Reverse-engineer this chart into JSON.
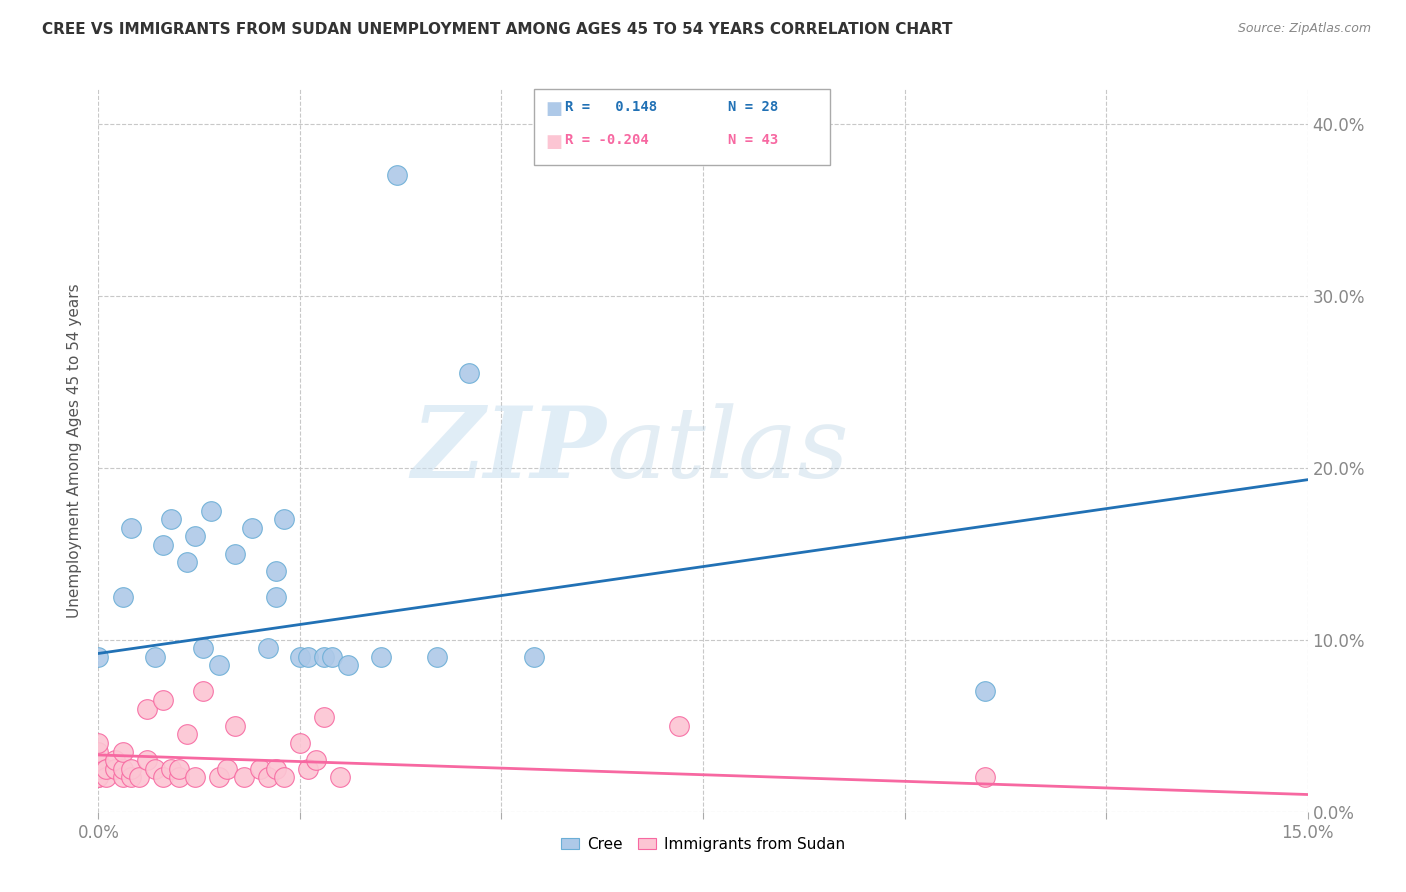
{
  "title": "CREE VS IMMIGRANTS FROM SUDAN UNEMPLOYMENT AMONG AGES 45 TO 54 YEARS CORRELATION CHART",
  "source": "Source: ZipAtlas.com",
  "ylabel": "Unemployment Among Ages 45 to 54 years",
  "xlim": [
    0.0,
    0.15
  ],
  "ylim": [
    0.0,
    0.42
  ],
  "xticks_minor": [
    0.0,
    0.025,
    0.05,
    0.075,
    0.1,
    0.125,
    0.15
  ],
  "xticks_labeled": [
    0.0,
    0.15
  ],
  "xtick_labels": [
    "0.0%",
    "15.0%"
  ],
  "yticks": [
    0.0,
    0.1,
    0.2,
    0.3,
    0.4
  ],
  "ytick_labels": [
    "0.0%",
    "10.0%",
    "20.0%",
    "30.0%",
    "40.0%"
  ],
  "cree_color": "#aec9e8",
  "cree_edge_color": "#6baed6",
  "sudan_color": "#fcc5d3",
  "sudan_edge_color": "#f768a1",
  "cree_line_color": "#2171b5",
  "sudan_line_color": "#f768a1",
  "legend_r_cree": "R =   0.148",
  "legend_n_cree": "N = 28",
  "legend_r_sudan": "R = -0.204",
  "legend_n_sudan": "N = 43",
  "watermark_zip": "ZIP",
  "watermark_atlas": "atlas",
  "cree_line_x0": 0.0,
  "cree_line_y0": 0.092,
  "cree_line_x1": 0.15,
  "cree_line_y1": 0.193,
  "sudan_line_x0": 0.0,
  "sudan_line_y0": 0.033,
  "sudan_line_x1": 0.15,
  "sudan_line_y1": 0.01,
  "cree_points_x": [
    0.0,
    0.003,
    0.004,
    0.007,
    0.008,
    0.009,
    0.011,
    0.012,
    0.013,
    0.014,
    0.015,
    0.017,
    0.019,
    0.021,
    0.022,
    0.022,
    0.023,
    0.025,
    0.026,
    0.028,
    0.029,
    0.031,
    0.035,
    0.037,
    0.042,
    0.046,
    0.054,
    0.11
  ],
  "cree_points_y": [
    0.09,
    0.125,
    0.165,
    0.09,
    0.155,
    0.17,
    0.145,
    0.16,
    0.095,
    0.175,
    0.085,
    0.15,
    0.165,
    0.095,
    0.125,
    0.14,
    0.17,
    0.09,
    0.09,
    0.09,
    0.09,
    0.085,
    0.09,
    0.37,
    0.09,
    0.255,
    0.09,
    0.07
  ],
  "sudan_points_x": [
    0.0,
    0.0,
    0.0,
    0.0,
    0.0,
    0.0,
    0.0,
    0.001,
    0.001,
    0.002,
    0.002,
    0.003,
    0.003,
    0.003,
    0.004,
    0.004,
    0.005,
    0.006,
    0.006,
    0.007,
    0.008,
    0.008,
    0.009,
    0.01,
    0.01,
    0.011,
    0.012,
    0.013,
    0.015,
    0.016,
    0.017,
    0.018,
    0.02,
    0.021,
    0.022,
    0.023,
    0.025,
    0.026,
    0.027,
    0.028,
    0.03,
    0.072,
    0.11
  ],
  "sudan_points_y": [
    0.02,
    0.02,
    0.025,
    0.025,
    0.03,
    0.035,
    0.04,
    0.02,
    0.025,
    0.025,
    0.03,
    0.02,
    0.025,
    0.035,
    0.02,
    0.025,
    0.02,
    0.03,
    0.06,
    0.025,
    0.02,
    0.065,
    0.025,
    0.02,
    0.025,
    0.045,
    0.02,
    0.07,
    0.02,
    0.025,
    0.05,
    0.02,
    0.025,
    0.02,
    0.025,
    0.02,
    0.04,
    0.025,
    0.03,
    0.055,
    0.02,
    0.05,
    0.02
  ],
  "background_color": "#ffffff",
  "grid_color": "#c8c8c8",
  "tick_color": "#888888",
  "label_color": "#555555",
  "title_color": "#333333"
}
